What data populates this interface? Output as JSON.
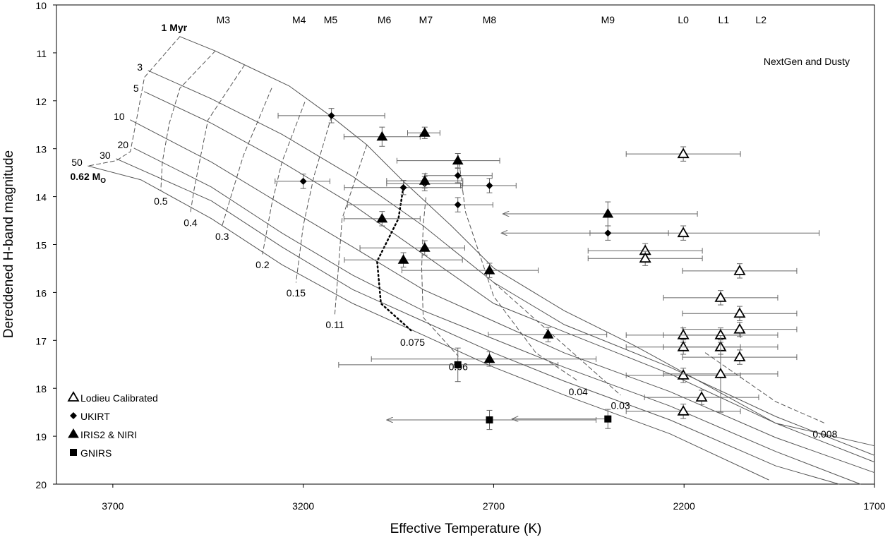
{
  "chart_data": {
    "type": "scatter",
    "x_label": "Effective Temperature (K)",
    "y_label": "Dereddened H-band magnitude",
    "annotation": "NextGen and Dusty",
    "xlim": [
      3848,
      1700
    ],
    "ylim": [
      10,
      20
    ],
    "y_inverted": true,
    "xticks": [
      3700,
      3200,
      2700,
      2200,
      1700
    ],
    "yticks": [
      10,
      11,
      12,
      13,
      14,
      15,
      16,
      17,
      18,
      19,
      20
    ],
    "legend": "lower left",
    "spectral_types": [
      {
        "value": 3410,
        "label": "M3"
      },
      {
        "value": 3211,
        "label": "M4"
      },
      {
        "value": 3128,
        "label": "M5"
      },
      {
        "value": 2987,
        "label": "M6"
      },
      {
        "value": 2878,
        "label": "M7"
      },
      {
        "value": 2711,
        "label": "M8"
      },
      {
        "value": 2400,
        "label": "M9"
      },
      {
        "value": 2202,
        "label": "L0"
      },
      {
        "value": 2096,
        "label": "L1"
      },
      {
        "value": 1998,
        "label": "L2"
      }
    ],
    "isochrones": [
      {
        "label": "1 Myr",
        "x": [
          3524,
          3431,
          3354,
          3237,
          3126,
          3033,
          2941,
          2811,
          2700,
          2515,
          2330,
          2144,
          1959,
          1700
        ],
        "y": [
          10.66,
          10.96,
          11.25,
          11.69,
          12.33,
          12.92,
          13.65,
          14.61,
          15.49,
          16.38,
          17.11,
          17.92,
          18.73,
          19.2
        ]
      },
      {
        "label": "3",
        "x": [
          3607,
          3441,
          3256,
          3070,
          2885,
          2700,
          2515,
          2237,
          1959,
          1700
        ],
        "y": [
          11.37,
          11.96,
          12.7,
          13.58,
          14.61,
          15.79,
          16.67,
          17.56,
          18.59,
          19.4
        ]
      },
      {
        "label": "5",
        "x": [
          3617,
          3441,
          3256,
          3070,
          2885,
          2700,
          2515,
          2237,
          1959,
          1700
        ],
        "y": [
          11.81,
          12.47,
          13.28,
          14.17,
          15.2,
          16.23,
          16.82,
          17.7,
          18.73,
          19.54
        ]
      },
      {
        "label": "10",
        "x": [
          3654,
          3441,
          3256,
          3070,
          2885,
          2700,
          2515,
          2237,
          1959,
          1700
        ],
        "y": [
          12.4,
          13.28,
          14.17,
          15.05,
          15.94,
          16.6,
          17.26,
          18.07,
          19.03,
          19.76
        ]
      },
      {
        "label": "20",
        "x": [
          3644,
          3441,
          3256,
          3070,
          2885,
          2700,
          2515,
          2237,
          1959,
          1737
        ],
        "y": [
          12.99,
          13.8,
          14.76,
          15.64,
          16.38,
          16.97,
          17.56,
          18.37,
          19.32,
          20
        ]
      },
      {
        "label": "30",
        "x": [
          3691,
          3441,
          3256,
          3070,
          2885,
          2700,
          2515,
          2237,
          1959,
          1793
        ],
        "y": [
          13.21,
          14.09,
          15.05,
          15.94,
          16.6,
          17.26,
          17.85,
          18.66,
          19.62,
          20
        ]
      },
      {
        "label": "50",
        "x": [
          3765,
          3626,
          3441,
          3256,
          3070,
          2885,
          2700,
          2515,
          2237,
          1978
        ],
        "y": [
          13.36,
          13.65,
          14.46,
          15.42,
          16.23,
          16.89,
          17.56,
          18.14,
          18.95,
          19.91
        ]
      }
    ],
    "mass_tracks": [
      {
        "label": "0.62 M",
        "sub": "O",
        "style": "dashed",
        "x": [
          3524,
          3617,
          3636,
          3654,
          3691,
          3765
        ],
        "y": [
          10.66,
          11.51,
          12.32,
          13.06,
          13.25,
          13.36
        ]
      },
      {
        "label": "0.5",
        "style": "dashed",
        "x": [
          3431,
          3524,
          3552,
          3570,
          3574
        ],
        "y": [
          10.96,
          11.74,
          12.48,
          13.28,
          13.87
        ]
      },
      {
        "label": "0.4",
        "style": "dashed",
        "x": [
          3354,
          3450,
          3469,
          3487,
          3496
        ],
        "y": [
          11.25,
          12.4,
          13.14,
          13.87,
          14.32
        ]
      },
      {
        "label": "0.3",
        "style": "dashed",
        "x": [
          3283,
          3357,
          3385,
          3413
        ],
        "y": [
          11.74,
          13.14,
          13.87,
          14.61
        ]
      },
      {
        "label": "0.2",
        "style": "dashed",
        "x": [
          3196,
          3256,
          3283,
          3307
        ],
        "y": [
          12.03,
          13.28,
          14.17,
          15.2
        ]
      },
      {
        "label": "0.15",
        "style": "dashed",
        "x": [
          3126,
          3172,
          3200,
          3219
        ],
        "y": [
          12.33,
          13.58,
          14.61,
          15.79
        ]
      },
      {
        "label": "0.11",
        "style": "dashed",
        "x": [
          3033,
          3098,
          3107,
          3117
        ],
        "y": [
          12.92,
          14.46,
          15.42,
          16.45
        ]
      },
      {
        "label": "0.075",
        "style": "dotted",
        "x": [
          2937,
          2950,
          3006,
          2996,
          2913
        ],
        "y": [
          13.8,
          14.46,
          15.35,
          16.23,
          16.82
        ]
      },
      {
        "label": "0.06",
        "style": "dashed",
        "x": [
          2878,
          2885,
          2889,
          2885,
          2793
        ],
        "y": [
          14.02,
          14.61,
          15.49,
          16.52,
          17.33
        ]
      },
      {
        "label": "0.04",
        "style": "dashed",
        "x": [
          2793,
          2774,
          2700,
          2589,
          2478
        ],
        "y": [
          13.14,
          14.32,
          16.08,
          17.26,
          17.85
        ]
      },
      {
        "label": "0.03",
        "style": "dashed",
        "x": [
          2700,
          2533,
          2367
        ],
        "y": [
          15.79,
          16.97,
          18.14
        ]
      },
      {
        "label": "0.008",
        "style": "dashed",
        "x": [
          2144,
          1959,
          1830
        ],
        "y": [
          17.26,
          18.28,
          18.73
        ]
      }
    ],
    "series": [
      {
        "name": "Lodieu Calibrated",
        "marker": "open-triangle",
        "color": "#000000",
        "values": [
          {
            "x": 2202,
            "y": 13.11,
            "xerr": [
              150,
              150
            ],
            "yerr": 0.15
          },
          {
            "x": 2202,
            "y": 14.76,
            "xerr": [
              357,
              245
            ],
            "yerr": 0.15
          },
          {
            "x": 2302,
            "y": 15.13,
            "xerr": [
              150,
              150
            ],
            "yerr": 0.15
          },
          {
            "x": 2302,
            "y": 15.29,
            "xerr": [
              150,
              150
            ],
            "yerr": 0.15
          },
          {
            "x": 2054,
            "y": 15.55,
            "xerr": [
              150,
              150
            ],
            "yerr": 0.15
          },
          {
            "x": 2104,
            "y": 16.11,
            "xerr": [
              150,
              150
            ],
            "yerr": 0.15
          },
          {
            "x": 2054,
            "y": 16.44,
            "xerr": [
              150,
              150
            ],
            "yerr": 0.15
          },
          {
            "x": 2054,
            "y": 16.77,
            "xerr": [
              150,
              150
            ],
            "yerr": 0.15
          },
          {
            "x": 2202,
            "y": 16.89,
            "xerr": [
              150,
              150
            ],
            "yerr": 0.15
          },
          {
            "x": 2104,
            "y": 16.89,
            "xerr": [
              150,
              150
            ],
            "yerr": 0.15
          },
          {
            "x": 2202,
            "y": 17.14,
            "xerr": [
              150,
              150
            ],
            "yerr": 0.15
          },
          {
            "x": 2104,
            "y": 17.14,
            "xerr": [
              150,
              150
            ],
            "yerr": 0.15
          },
          {
            "x": 2054,
            "y": 17.35,
            "xerr": [
              150,
              150
            ],
            "yerr": 0.15
          },
          {
            "x": 2202,
            "y": 17.73,
            "xerr": [
              150,
              150
            ],
            "yerr": 0.15
          },
          {
            "x": 2104,
            "y": 17.7,
            "xerr": [
              150,
              150
            ],
            "yerr": 0.8
          },
          {
            "x": 2154,
            "y": 18.19,
            "xerr": [
              150,
              150
            ],
            "yerr": 0.15
          },
          {
            "x": 2202,
            "y": 18.48,
            "xerr": [
              150,
              150
            ],
            "yerr": 0.15
          }
        ]
      },
      {
        "name": "UKIRT",
        "marker": "diamond",
        "color": "#000000",
        "values": [
          {
            "x": 3126,
            "y": 12.31,
            "xerr": [
              140,
              140
            ],
            "yerr": 0.15
          },
          {
            "x": 3200,
            "y": 13.68,
            "xerr": [
              70,
              74
            ],
            "yerr": 0.15
          },
          {
            "x": 2937,
            "y": 13.81,
            "xerr": [
              155,
              155
            ],
            "yerr": 0.15
          },
          {
            "x": 2794,
            "y": 13.56,
            "xerr": [
              90,
              85
            ],
            "yerr": 0.15
          },
          {
            "x": 2881,
            "y": 13.73,
            "xerr": [
              100,
              100
            ],
            "yerr": 0.15
          },
          {
            "x": 2711,
            "y": 13.77,
            "xerr": [
              70,
              76
            ],
            "yerr": 0.15
          },
          {
            "x": 2794,
            "y": 14.17,
            "xerr": [
              92,
              290
            ],
            "yerr": 0.15
          },
          {
            "x": 2400,
            "y": 14.76,
            "xerr": [
              159,
              280
            ],
            "yerr": 0.15,
            "limit": true
          }
        ]
      },
      {
        "name": "IRIS2 & NIRI",
        "marker": "triangle",
        "color": "#000000",
        "values": [
          {
            "x": 2993,
            "y": 12.75,
            "xerr": [
              100,
              100
            ],
            "yerr": 0.2
          },
          {
            "x": 2881,
            "y": 12.67,
            "xerr": [
              40,
              45
            ],
            "yerr": 0.12
          },
          {
            "x": 2794,
            "y": 13.25,
            "xerr": [
              110,
              160
            ],
            "yerr": 0.15
          },
          {
            "x": 2881,
            "y": 13.67,
            "xerr": [
              100,
              100
            ],
            "yerr": 0.15
          },
          {
            "x": 2993,
            "y": 14.46,
            "xerr": [
              100,
              100
            ],
            "yerr": 0.15
          },
          {
            "x": 2937,
            "y": 15.32,
            "xerr": [
              155,
              155
            ],
            "yerr": 0.15
          },
          {
            "x": 2881,
            "y": 15.07,
            "xerr": [
              105,
              170
            ],
            "yerr": 0.15
          },
          {
            "x": 2711,
            "y": 15.54,
            "xerr": [
              128,
              230
            ],
            "yerr": 0.15
          },
          {
            "x": 2400,
            "y": 14.36,
            "xerr": [
              235,
              276
            ],
            "yerr": 0.25,
            "limit": true
          },
          {
            "x": 2557,
            "y": 16.88,
            "xerr": [
              154,
              157
            ],
            "yerr": 0.15
          },
          {
            "x": 2711,
            "y": 17.39,
            "xerr": [
              280,
              310
            ],
            "yerr": 0.15
          }
        ]
      },
      {
        "name": "GNIRS",
        "marker": "square",
        "color": "#000000",
        "values": [
          {
            "x": 2794,
            "y": 17.51,
            "xerr": [
              263,
              313
            ],
            "yerr": 0.35
          },
          {
            "x": 2711,
            "y": 18.66,
            "xerr": [
              280,
              270
            ],
            "yerr": 0.2,
            "limit": true
          },
          {
            "x": 2400,
            "y": 18.64,
            "xerr": [
              0,
              252
            ],
            "yerr": 0.2,
            "limit": true
          }
        ]
      }
    ]
  }
}
